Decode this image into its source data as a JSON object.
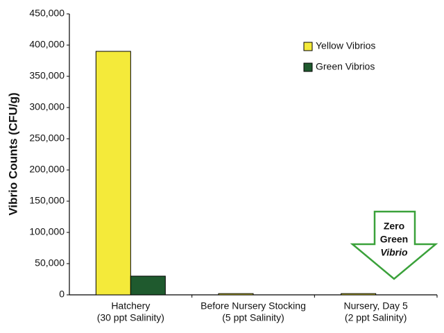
{
  "chart_data": {
    "type": "bar",
    "ylabel": "Vibrio Counts (CFU/g)",
    "categories": [
      [
        "Hatchery",
        "(30 ppt Salinity)"
      ],
      [
        "Before Nursery Stocking",
        "(5 ppt Salinity)"
      ],
      [
        "Nursery, Day 5",
        "(2 ppt Salinity)"
      ]
    ],
    "series": [
      {
        "name": "Yellow Vibrios",
        "color": "#f4ea3a",
        "values": [
          390000,
          2000,
          2000
        ]
      },
      {
        "name": "Green Vibrios",
        "color": "#1f5a2e",
        "values": [
          30000,
          0,
          0
        ]
      }
    ],
    "ylim": [
      0,
      450000
    ],
    "yticks": [
      0,
      {
        "value": 50000,
        "label": "50,000"
      },
      {
        "value": 100000,
        "label": "100,000"
      },
      {
        "value": 150000,
        "label": "150,000"
      },
      {
        "value": 200000,
        "label": "200,000"
      },
      {
        "value": 250000,
        "label": "250,000"
      },
      {
        "value": 300000,
        "label": "300,000"
      },
      {
        "value": 350000,
        "label": "350,000"
      },
      {
        "value": 400000,
        "label": "400,000"
      },
      {
        "value": 450000,
        "label": "450,000"
      }
    ],
    "legend": "upper right",
    "annotation": [
      "Zero",
      "Green",
      "Vibrio"
    ]
  }
}
